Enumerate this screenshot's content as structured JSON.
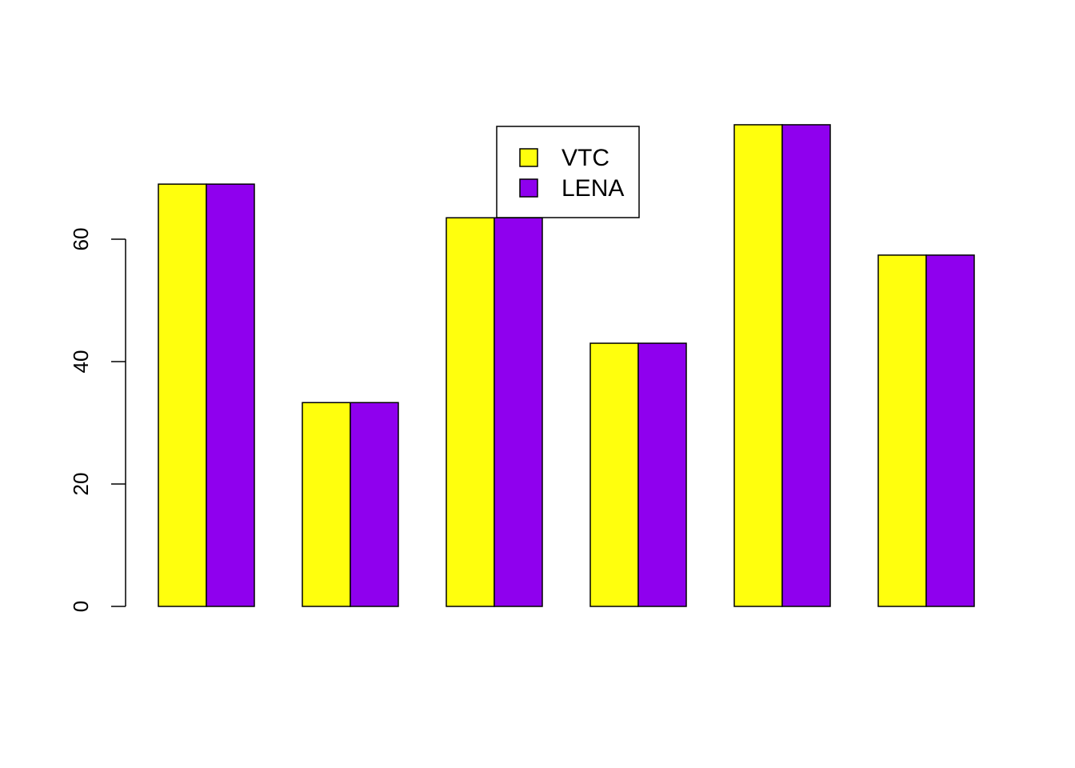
{
  "chart_data": {
    "type": "bar",
    "grouping": "grouped",
    "categories": [
      "",
      "",
      "",
      "",
      "",
      ""
    ],
    "series": [
      {
        "name": "VTC",
        "color": "#FFFF0D",
        "values": [
          69,
          33.3,
          63.5,
          43,
          78.7,
          57.4
        ]
      },
      {
        "name": "LENA",
        "color": "#8F00EE",
        "values": [
          69,
          33.3,
          63.5,
          43,
          78.7,
          57.4
        ]
      }
    ],
    "title": "",
    "xlabel": "",
    "ylabel": "",
    "ylim": [
      0,
      80
    ],
    "yticks": [
      0,
      20,
      40,
      60
    ],
    "grid": false,
    "legend": {
      "placement": "top-center",
      "entries": [
        "VTC",
        "LENA"
      ]
    }
  }
}
